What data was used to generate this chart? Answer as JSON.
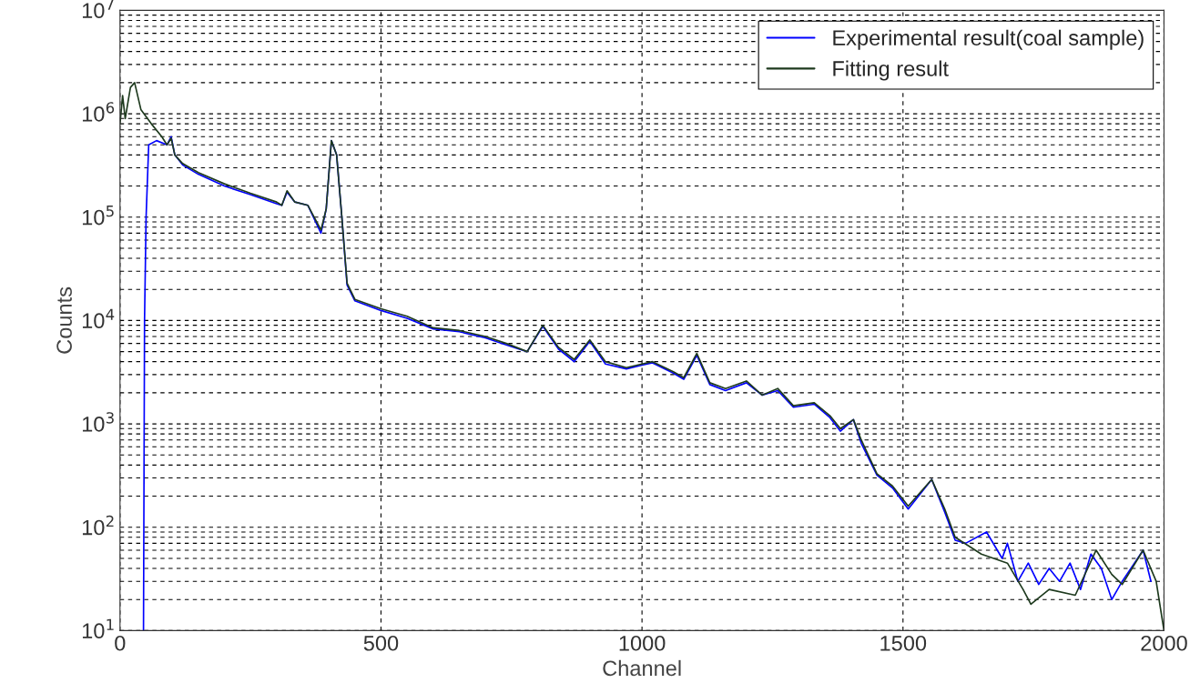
{
  "chart_data": {
    "type": "line",
    "xlabel": "Channel",
    "ylabel": "Counts",
    "log": "y",
    "grid": true,
    "legend": "top right",
    "line_style": "solid",
    "marker": "none",
    "xlim": [
      0,
      2000
    ],
    "xticks": [
      0,
      500,
      1000,
      1500,
      2000
    ],
    "ylim": [
      10,
      10000000
    ],
    "yticks": [
      {
        "value": 10,
        "label": "10$^{1}$"
      },
      {
        "value": 100,
        "label": "10$^{2}$"
      },
      {
        "value": 1000,
        "label": "10$^{3}$"
      },
      {
        "value": 10000,
        "label": "10$^{4}$"
      },
      {
        "value": 100000,
        "label": "10$^{5}$"
      },
      {
        "value": 1000000,
        "label": "10$^{6}$"
      },
      {
        "value": 10000000,
        "label": "10$^{7}$"
      }
    ],
    "series": [
      {
        "name": "Experimental result(coal sample)",
        "color": "#0000ff",
        "x": [
          45,
          47,
          50,
          55,
          70,
          90,
          98,
          105,
          120,
          150,
          200,
          250,
          300,
          310,
          320,
          335,
          360,
          385,
          395,
          405,
          415,
          425,
          435,
          450,
          500,
          550,
          600,
          650,
          700,
          740,
          780,
          810,
          840,
          870,
          900,
          930,
          970,
          1000,
          1020,
          1060,
          1080,
          1105,
          1130,
          1160,
          1200,
          1230,
          1260,
          1290,
          1330,
          1360,
          1380,
          1405,
          1420,
          1450,
          1480,
          1510,
          1555,
          1580,
          1600,
          1620,
          1660,
          1690,
          1700,
          1720,
          1740,
          1760,
          1780,
          1800,
          1820,
          1840,
          1860,
          1880,
          1900,
          1920,
          1960,
          1975
        ],
        "values": [
          10,
          10000,
          100000,
          500000,
          550000,
          500000,
          600000,
          400000,
          320000,
          260000,
          200000,
          165000,
          135000,
          130000,
          175000,
          140000,
          130000,
          70000,
          120000,
          550000,
          400000,
          100000,
          22000,
          15500,
          12500,
          10500,
          8300,
          7800,
          6800,
          5800,
          5000,
          8800,
          5300,
          4000,
          6300,
          3800,
          3400,
          3700,
          3900,
          3100,
          2700,
          4600,
          2400,
          2100,
          2500,
          1900,
          2100,
          1450,
          1550,
          1150,
          850,
          1100,
          650,
          320,
          240,
          150,
          290,
          140,
          75,
          70,
          90,
          50,
          70,
          30,
          45,
          28,
          40,
          30,
          45,
          25,
          55,
          40,
          20,
          30,
          60,
          30
        ]
      },
      {
        "name": "Fitting result",
        "color": "#1e3a1e",
        "x": [
          0,
          5,
          10,
          20,
          28,
          40,
          60,
          80,
          90,
          98,
          105,
          120,
          150,
          200,
          250,
          300,
          310,
          320,
          335,
          360,
          385,
          395,
          405,
          415,
          425,
          435,
          450,
          500,
          550,
          600,
          650,
          700,
          740,
          780,
          810,
          840,
          870,
          900,
          930,
          970,
          1000,
          1020,
          1060,
          1080,
          1105,
          1130,
          1160,
          1200,
          1230,
          1260,
          1290,
          1330,
          1360,
          1380,
          1405,
          1420,
          1450,
          1480,
          1510,
          1555,
          1580,
          1600,
          1650,
          1700,
          1730,
          1745,
          1780,
          1830,
          1870,
          1900,
          1920,
          1960,
          1985,
          2000
        ],
        "values": [
          800000,
          1500000,
          900000,
          1800000,
          2000000,
          1100000,
          800000,
          600000,
          500000,
          580000,
          400000,
          330000,
          270000,
          210000,
          170000,
          140000,
          130000,
          180000,
          140000,
          130000,
          75000,
          120000,
          550000,
          400000,
          100000,
          23000,
          16000,
          13000,
          11000,
          8500,
          8000,
          7000,
          6000,
          5000,
          9000,
          5500,
          4200,
          6500,
          4000,
          3500,
          3800,
          4000,
          3200,
          2800,
          4800,
          2500,
          2200,
          2600,
          1900,
          2200,
          1500,
          1600,
          1200,
          900,
          1100,
          700,
          330,
          250,
          160,
          290,
          150,
          80,
          55,
          45,
          25,
          18,
          25,
          22,
          60,
          35,
          28,
          60,
          30,
          10
        ]
      }
    ]
  }
}
